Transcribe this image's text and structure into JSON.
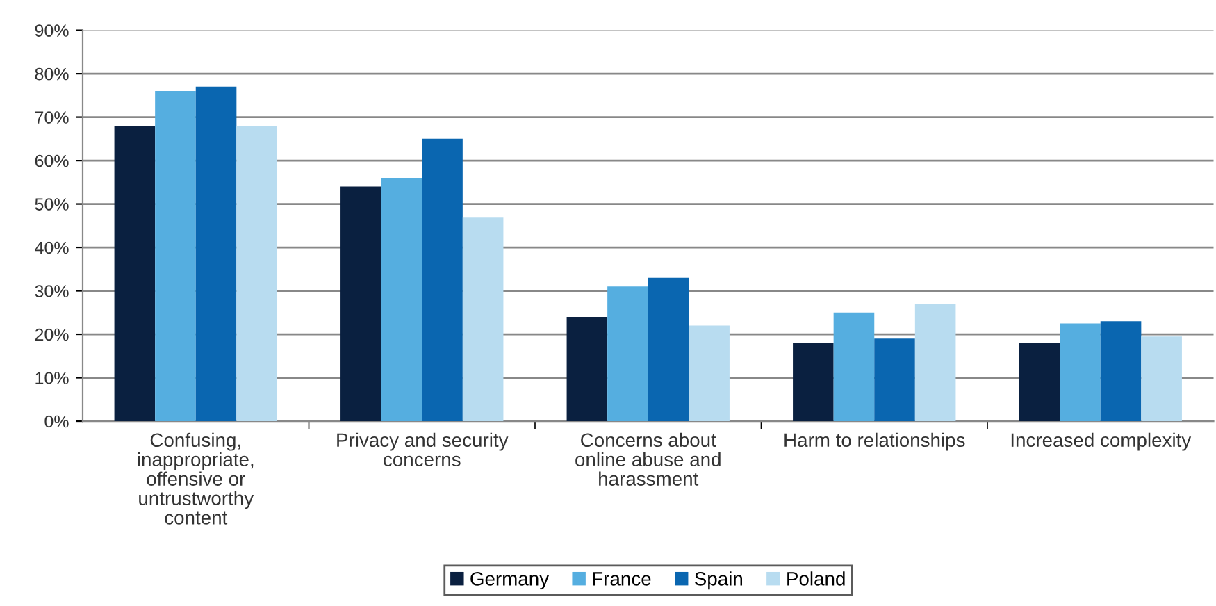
{
  "chart_data": {
    "type": "bar",
    "categories": [
      "Confusing,\ninappropriate,\noffensive or\nuntrustworthy\ncontent",
      "Privacy and security\nconcerns",
      "Concerns about\nonline abuse and\nharassment",
      "Harm to relationships",
      "Increased complexity"
    ],
    "series": [
      {
        "name": "Germany",
        "color": "#0a2040",
        "values": [
          68,
          54,
          24,
          18,
          18
        ]
      },
      {
        "name": "France",
        "color": "#55aee0",
        "values": [
          76,
          56,
          31,
          25,
          22.5
        ]
      },
      {
        "name": "Spain",
        "color": "#0a66b0",
        "values": [
          77,
          65,
          33,
          19,
          23
        ]
      },
      {
        "name": "Poland",
        "color": "#b8dcf0",
        "values": [
          68,
          47,
          22,
          27,
          19.5
        ]
      }
    ],
    "ylim": [
      0,
      90
    ],
    "yticks": [
      {
        "value": 0,
        "label": "0%"
      },
      {
        "value": 10,
        "label": "10%"
      },
      {
        "value": 20,
        "label": "20%"
      },
      {
        "value": 30,
        "label": "30%"
      },
      {
        "value": 40,
        "label": "40%"
      },
      {
        "value": 50,
        "label": "50%"
      },
      {
        "value": 60,
        "label": "60%"
      },
      {
        "value": 70,
        "label": "70%"
      },
      {
        "value": 80,
        "label": "80%"
      },
      {
        "value": 90,
        "label": "90%"
      }
    ],
    "grid": "y",
    "legend": "bottom"
  }
}
